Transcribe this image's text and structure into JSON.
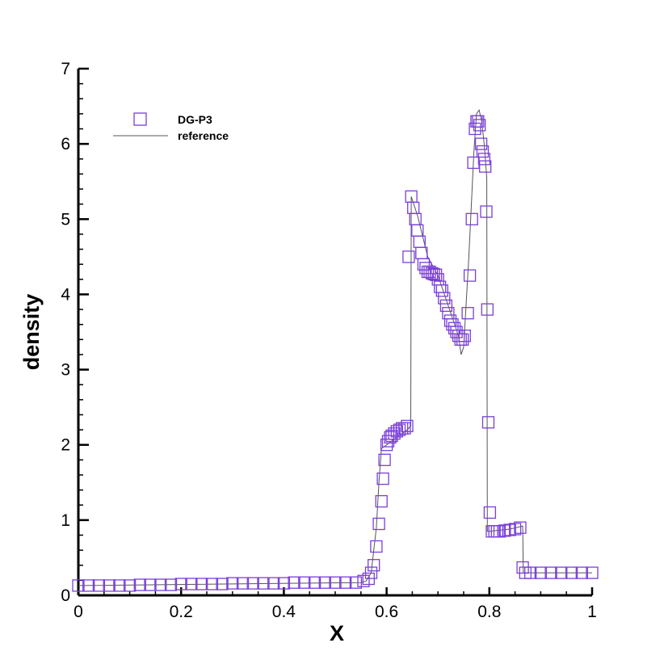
{
  "chart_data": {
    "type": "scatter",
    "title": "",
    "xlabel": "X",
    "ylabel": "density",
    "xlim": [
      0,
      1
    ],
    "ylim": [
      0,
      7
    ],
    "x_ticks": [
      "0",
      "0.2",
      "0.4",
      "0.6",
      "0.8",
      "1"
    ],
    "y_ticks": [
      "0",
      "1",
      "2",
      "3",
      "4",
      "5",
      "6",
      "7"
    ],
    "grid": false,
    "legend": {
      "position": "top-left",
      "entries": [
        "DG-P3",
        "reference"
      ]
    },
    "colors": {
      "marker": "#7a3fd8",
      "reference_line": "#555555",
      "axis": "#000000"
    },
    "series": [
      {
        "name": "DG-P3",
        "style": "open-square-markers",
        "x": [
          0.0,
          0.02,
          0.04,
          0.06,
          0.08,
          0.1,
          0.12,
          0.14,
          0.16,
          0.18,
          0.2,
          0.22,
          0.24,
          0.26,
          0.28,
          0.3,
          0.32,
          0.34,
          0.36,
          0.38,
          0.4,
          0.42,
          0.44,
          0.46,
          0.48,
          0.5,
          0.52,
          0.54,
          0.555,
          0.565,
          0.57,
          0.575,
          0.58,
          0.585,
          0.59,
          0.593,
          0.596,
          0.6,
          0.603,
          0.607,
          0.61,
          0.615,
          0.62,
          0.625,
          0.63,
          0.635,
          0.64,
          0.643,
          0.648,
          0.652,
          0.656,
          0.66,
          0.664,
          0.668,
          0.672,
          0.676,
          0.68,
          0.684,
          0.688,
          0.692,
          0.696,
          0.7,
          0.704,
          0.708,
          0.712,
          0.716,
          0.72,
          0.724,
          0.728,
          0.732,
          0.736,
          0.74,
          0.744,
          0.748,
          0.752,
          0.758,
          0.762,
          0.766,
          0.769,
          0.772,
          0.775,
          0.778,
          0.781,
          0.784,
          0.787,
          0.79,
          0.792,
          0.794,
          0.796,
          0.798,
          0.801,
          0.805,
          0.81,
          0.815,
          0.82,
          0.83,
          0.84,
          0.85,
          0.86,
          0.865,
          0.87,
          0.88,
          0.9,
          0.92,
          0.94,
          0.96,
          0.98,
          1.0
        ],
        "y": [
          0.13,
          0.13,
          0.13,
          0.13,
          0.13,
          0.13,
          0.14,
          0.14,
          0.14,
          0.14,
          0.15,
          0.15,
          0.15,
          0.15,
          0.15,
          0.16,
          0.16,
          0.16,
          0.16,
          0.16,
          0.16,
          0.17,
          0.17,
          0.17,
          0.17,
          0.17,
          0.17,
          0.17,
          0.19,
          0.22,
          0.3,
          0.4,
          0.65,
          0.95,
          1.25,
          1.55,
          1.8,
          2.0,
          2.05,
          2.1,
          2.12,
          2.15,
          2.18,
          2.2,
          2.22,
          2.22,
          2.25,
          4.5,
          5.3,
          5.15,
          5.0,
          4.85,
          4.7,
          4.55,
          4.4,
          4.35,
          4.3,
          4.3,
          4.28,
          4.27,
          4.26,
          4.2,
          4.1,
          4.05,
          3.95,
          3.85,
          3.75,
          3.65,
          3.6,
          3.55,
          3.5,
          3.45,
          3.4,
          3.4,
          3.45,
          3.75,
          4.25,
          5.0,
          5.75,
          6.2,
          6.3,
          6.3,
          6.25,
          6.0,
          5.9,
          5.8,
          5.7,
          5.1,
          3.8,
          2.3,
          1.1,
          0.85,
          0.85,
          0.85,
          0.85,
          0.86,
          0.87,
          0.88,
          0.9,
          0.37,
          0.3,
          0.3,
          0.3,
          0.3,
          0.3,
          0.3,
          0.3,
          0.3
        ]
      },
      {
        "name": "reference",
        "style": "thin-line",
        "x": [
          0.0,
          0.55,
          0.56,
          0.57,
          0.58,
          0.585,
          0.59,
          0.6,
          0.62,
          0.64,
          0.647,
          0.648,
          0.66,
          0.68,
          0.7,
          0.72,
          0.74,
          0.745,
          0.75,
          0.76,
          0.77,
          0.775,
          0.78,
          0.785,
          0.79,
          0.795,
          0.796,
          0.8,
          0.84,
          0.865,
          0.866,
          0.9,
          1.0
        ],
        "y": [
          0.13,
          0.17,
          0.19,
          0.3,
          0.9,
          1.5,
          1.95,
          2.0,
          2.1,
          2.2,
          2.25,
          5.3,
          5.05,
          4.5,
          4.25,
          3.85,
          3.45,
          3.2,
          3.3,
          4.5,
          5.9,
          6.4,
          6.45,
          6.3,
          6.0,
          5.55,
          0.85,
          0.85,
          0.88,
          0.92,
          0.3,
          0.3,
          0.3
        ]
      }
    ]
  }
}
